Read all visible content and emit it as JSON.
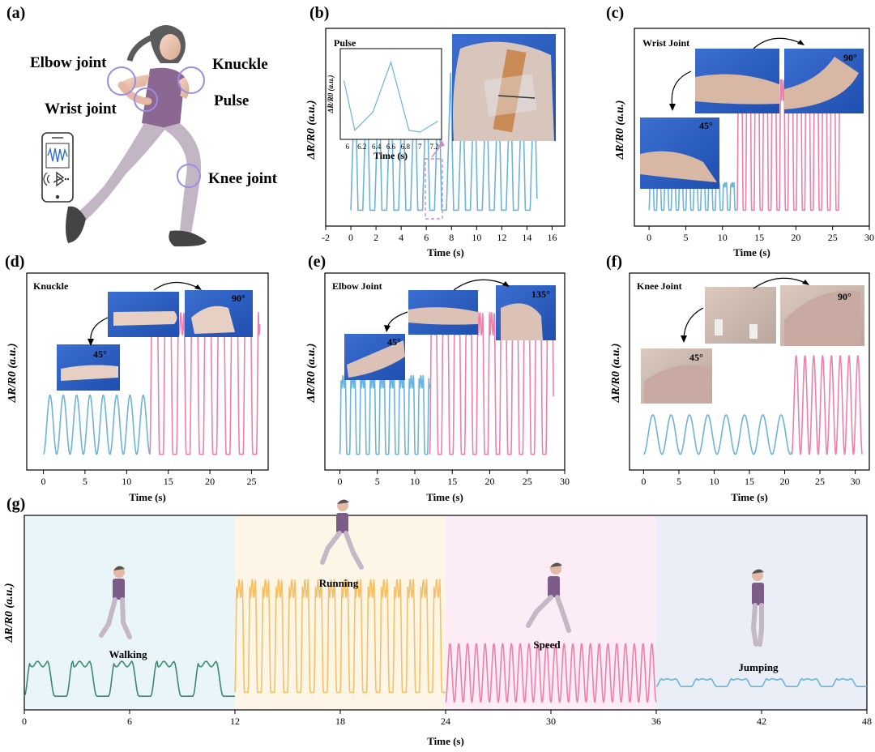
{
  "panels": [
    {
      "key": "a",
      "label": "(a)",
      "joint_labels": [
        "Elbow joint",
        "Knuckle",
        "Wrist joint",
        "Pulse",
        "Knee joint"
      ],
      "icons": [
        "smartphone-icon",
        "waveform-icon",
        "bluetooth-icon"
      ]
    },
    {
      "key": "b",
      "label": "(b)",
      "inset_title": "Pulse",
      "inset_xlabel": "Time (s)",
      "inset_ylabel": "ΔR/R0 (a.u.)",
      "inset_xticks": [
        "6",
        "6.2",
        "6.4",
        "6.6",
        "6.8",
        "7",
        "7.2"
      ],
      "inset_x": [
        5.95,
        6.1,
        6.35,
        6.6,
        6.85,
        7.0,
        7.25
      ],
      "inset_y": [
        0.65,
        0.1,
        0.3,
        0.85,
        0.1,
        0.08,
        0.2
      ]
    },
    {
      "key": "c",
      "label": "(c)",
      "title": "Wrist Joint",
      "angles": [
        "90°",
        "45°"
      ]
    },
    {
      "key": "d",
      "label": "(d)",
      "title": "Knuckle",
      "angles": [
        "90°",
        "45°"
      ]
    },
    {
      "key": "e",
      "label": "(e)",
      "title": "Elbow Joint",
      "angles": [
        "135°",
        "45°"
      ]
    },
    {
      "key": "f",
      "label": "(f)",
      "title": "Knee Joint",
      "angles": [
        "90°",
        "45°"
      ]
    },
    {
      "key": "g",
      "label": "(g)",
      "activities": [
        "Walking",
        "Running",
        "Speed",
        "Jumping"
      ],
      "region_colors": [
        "#eaf5fa",
        "#fdf6e6",
        "#fcecf5",
        "#eaeef7"
      ]
    }
  ],
  "chart_data": [
    {
      "id": "b",
      "type": "line",
      "title": "",
      "xlabel": "Time (s)",
      "ylabel": "ΔR/R0 (a.u.)",
      "xlim": [
        -2,
        17
      ],
      "xticks": [
        -2,
        0,
        2,
        4,
        6,
        8,
        10,
        12,
        14,
        16
      ],
      "series": [
        {
          "color": "#6cb4d9",
          "segments": [
            {
              "x0": 0,
              "x1": 14.8,
              "period": 0.95,
              "low": 0.08,
              "high": 0.78,
              "shape": "pulse"
            }
          ]
        }
      ]
    },
    {
      "id": "c",
      "type": "line",
      "title": "Wrist Joint",
      "xlabel": "Time (s)",
      "ylabel": "ΔR/R0 (a.u.)",
      "xlim": [
        -2,
        30
      ],
      "xticks": [
        0,
        5,
        10,
        15,
        20,
        25,
        30
      ],
      "series": [
        {
          "color": "#6cb4d9",
          "segments": [
            {
              "x0": 0,
              "x1": 12,
              "period": 1.0,
              "low": 0.08,
              "high": 0.22,
              "shape": "plateau"
            }
          ]
        },
        {
          "color": "#f07eab",
          "segments": [
            {
              "x0": 12,
              "x1": 26,
              "period": 1.15,
              "low": 0.08,
              "high": 0.74,
              "shape": "plateau"
            }
          ]
        }
      ]
    },
    {
      "id": "d",
      "type": "line",
      "title": "Knuckle",
      "xlabel": "Time (s)",
      "ylabel": "ΔR/R0 (a.u.)",
      "xlim": [
        -2,
        27
      ],
      "xticks": [
        0,
        5,
        10,
        15,
        20,
        25
      ],
      "series": [
        {
          "color": "#6cb4d9",
          "segments": [
            {
              "x0": 0,
              "x1": 12.8,
              "period": 1.6,
              "low": 0.08,
              "high": 0.38,
              "shape": "sine"
            }
          ]
        },
        {
          "color": "#f07eab",
          "segments": [
            {
              "x0": 12.8,
              "x1": 26,
              "period": 1.6,
              "low": 0.08,
              "high": 0.8,
              "shape": "plateau"
            }
          ]
        }
      ]
    },
    {
      "id": "e",
      "type": "line",
      "title": "Elbow Joint",
      "xlabel": "Time (s)",
      "ylabel": "ΔR/R0 (a.u.)",
      "xlim": [
        -2,
        30
      ],
      "xticks": [
        0,
        5,
        10,
        15,
        20,
        25,
        30
      ],
      "series": [
        {
          "color": "#6cb4d9",
          "segments": [
            {
              "x0": 0,
              "x1": 12,
              "period": 1.3,
              "low": 0.08,
              "high": 0.48,
              "shape": "plateau"
            }
          ]
        },
        {
          "color": "#f07eab",
          "segments": [
            {
              "x0": 12,
              "x1": 28.5,
              "period": 1.55,
              "low": 0.08,
              "high": 0.8,
              "shape": "plateau"
            }
          ]
        }
      ]
    },
    {
      "id": "f",
      "type": "line",
      "title": "Knee Joint",
      "xlabel": "Time (s)",
      "ylabel": "ΔR/R0 (a.u.)",
      "xlim": [
        -2,
        32
      ],
      "xticks": [
        0,
        5,
        10,
        15,
        20,
        25,
        30
      ],
      "series": [
        {
          "color": "#6cb4d9",
          "segments": [
            {
              "x0": 0,
              "x1": 21,
              "period": 2.6,
              "low": 0.08,
              "high": 0.28,
              "shape": "sine"
            }
          ]
        },
        {
          "color": "#f07eab",
          "segments": [
            {
              "x0": 21,
              "x1": 31,
              "period": 1.25,
              "low": 0.08,
              "high": 0.58,
              "shape": "sine"
            }
          ]
        }
      ]
    },
    {
      "id": "g",
      "type": "line",
      "title": "",
      "xlabel": "Time (s)",
      "ylabel": "ΔR/R0 (a.u.)",
      "xlim": [
        0,
        48
      ],
      "xticks": [
        0,
        6,
        12,
        18,
        24,
        30,
        36,
        42,
        48
      ],
      "series": [
        {
          "name": "Walking",
          "color": "#3a8a70",
          "segments": [
            {
              "x0": 0,
              "x1": 12,
              "period": 2.4,
              "low": 0.07,
              "high": 0.25,
              "shape": "plateau"
            }
          ]
        },
        {
          "name": "Running",
          "color": "#f5c065",
          "segments": [
            {
              "x0": 12,
              "x1": 24,
              "period": 0.75,
              "low": 0.09,
              "high": 0.67,
              "shape": "plateau"
            }
          ]
        },
        {
          "name": "Speed",
          "color": "#f07eab",
          "segments": [
            {
              "x0": 24,
              "x1": 36,
              "period": 0.5,
              "low": 0.04,
              "high": 0.34,
              "shape": "sine"
            }
          ]
        },
        {
          "name": "Jumping",
          "color": "#6cb4d9",
          "segments": [
            {
              "x0": 36,
              "x1": 48,
              "period": 2.0,
              "low": 0.12,
              "high": 0.16,
              "shape": "plateau"
            }
          ]
        }
      ]
    }
  ]
}
